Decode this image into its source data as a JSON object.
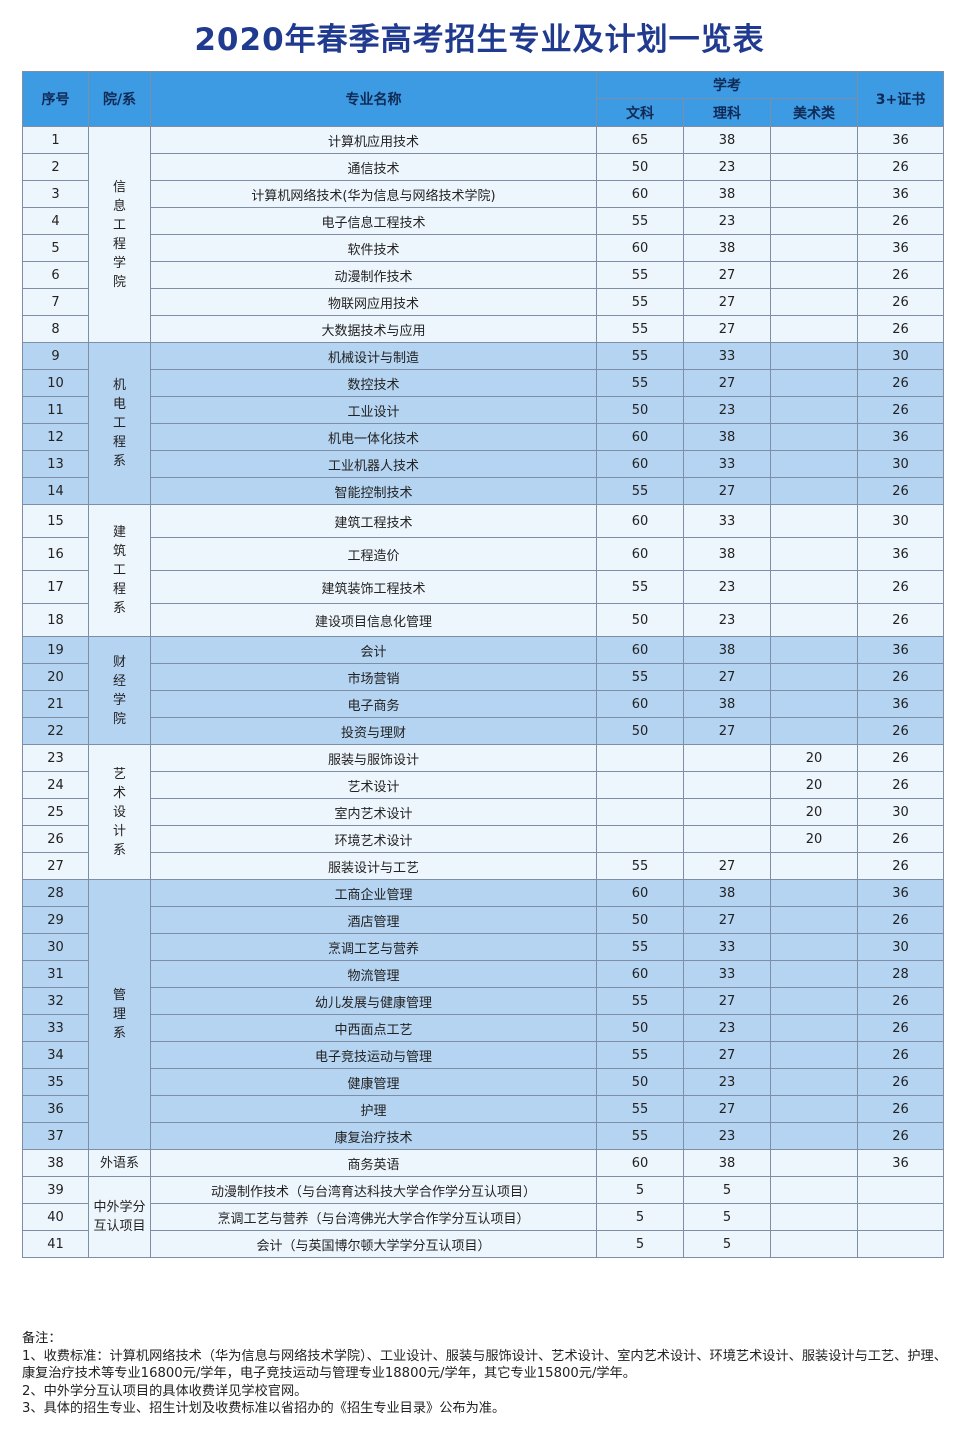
{
  "title": "2020年春季高考招生专业及计划一览表",
  "headers": {
    "index": "序号",
    "dept": "院/系",
    "major": "专业名称",
    "xuekao": "学考",
    "wenke": "文科",
    "like": "理科",
    "meishu": "美术类",
    "cert": "3+证书"
  },
  "departments": [
    {
      "name": "信息工程学院",
      "band": "w",
      "rows": [
        {
          "no": "1",
          "major": "计算机应用技术",
          "wen": "65",
          "li": "38",
          "mei": "",
          "cert": "36"
        },
        {
          "no": "2",
          "major": "通信技术",
          "wen": "50",
          "li": "23",
          "mei": "",
          "cert": "26"
        },
        {
          "no": "3",
          "major": "计算机网络技术(华为信息与网络技术学院)",
          "wen": "60",
          "li": "38",
          "mei": "",
          "cert": "36"
        },
        {
          "no": "4",
          "major": "电子信息工程技术",
          "wen": "55",
          "li": "23",
          "mei": "",
          "cert": "26"
        },
        {
          "no": "5",
          "major": "软件技术",
          "wen": "60",
          "li": "38",
          "mei": "",
          "cert": "36"
        },
        {
          "no": "6",
          "major": "动漫制作技术",
          "wen": "55",
          "li": "27",
          "mei": "",
          "cert": "26"
        },
        {
          "no": "7",
          "major": "物联网应用技术",
          "wen": "55",
          "li": "27",
          "mei": "",
          "cert": "26"
        },
        {
          "no": "8",
          "major": "大数据技术与应用",
          "wen": "55",
          "li": "27",
          "mei": "",
          "cert": "26"
        }
      ]
    },
    {
      "name": "机电工程系",
      "band": "b",
      "rows": [
        {
          "no": "9",
          "major": "机械设计与制造",
          "wen": "55",
          "li": "33",
          "mei": "",
          "cert": "30"
        },
        {
          "no": "10",
          "major": "数控技术",
          "wen": "55",
          "li": "27",
          "mei": "",
          "cert": "26"
        },
        {
          "no": "11",
          "major": "工业设计",
          "wen": "50",
          "li": "23",
          "mei": "",
          "cert": "26"
        },
        {
          "no": "12",
          "major": "机电一体化技术",
          "wen": "60",
          "li": "38",
          "mei": "",
          "cert": "36"
        },
        {
          "no": "13",
          "major": "工业机器人技术",
          "wen": "60",
          "li": "33",
          "mei": "",
          "cert": "30"
        },
        {
          "no": "14",
          "major": "智能控制技术",
          "wen": "55",
          "li": "27",
          "mei": "",
          "cert": "26"
        }
      ]
    },
    {
      "name": "建筑工程系",
      "band": "w",
      "rows": [
        {
          "no": "15",
          "major": "建筑工程技术",
          "wen": "60",
          "li": "33",
          "mei": "",
          "cert": "30"
        },
        {
          "no": "16",
          "major": "工程造价",
          "wen": "60",
          "li": "38",
          "mei": "",
          "cert": "36"
        },
        {
          "no": "17",
          "major": "建筑装饰工程技术",
          "wen": "55",
          "li": "23",
          "mei": "",
          "cert": "26"
        },
        {
          "no": "18",
          "major": "建设项目信息化管理",
          "wen": "50",
          "li": "23",
          "mei": "",
          "cert": "26"
        }
      ]
    },
    {
      "name": "财经学院",
      "band": "b",
      "rows": [
        {
          "no": "19",
          "major": "会计",
          "wen": "60",
          "li": "38",
          "mei": "",
          "cert": "36"
        },
        {
          "no": "20",
          "major": "市场营销",
          "wen": "55",
          "li": "27",
          "mei": "",
          "cert": "26"
        },
        {
          "no": "21",
          "major": "电子商务",
          "wen": "60",
          "li": "38",
          "mei": "",
          "cert": "36"
        },
        {
          "no": "22",
          "major": "投资与理财",
          "wen": "50",
          "li": "27",
          "mei": "",
          "cert": "26"
        }
      ]
    },
    {
      "name": "艺术设计系",
      "band": "w",
      "rows": [
        {
          "no": "23",
          "major": "服装与服饰设计",
          "wen": "",
          "li": "",
          "mei": "20",
          "cert": "26"
        },
        {
          "no": "24",
          "major": "艺术设计",
          "wen": "",
          "li": "",
          "mei": "20",
          "cert": "26"
        },
        {
          "no": "25",
          "major": "室内艺术设计",
          "wen": "",
          "li": "",
          "mei": "20",
          "cert": "30"
        },
        {
          "no": "26",
          "major": "环境艺术设计",
          "wen": "",
          "li": "",
          "mei": "20",
          "cert": "26"
        },
        {
          "no": "27",
          "major": "服装设计与工艺",
          "wen": "55",
          "li": "27",
          "mei": "",
          "cert": "26"
        }
      ]
    },
    {
      "name": "管理系",
      "band": "b",
      "rows": [
        {
          "no": "28",
          "major": "工商企业管理",
          "wen": "60",
          "li": "38",
          "mei": "",
          "cert": "36"
        },
        {
          "no": "29",
          "major": "酒店管理",
          "wen": "50",
          "li": "27",
          "mei": "",
          "cert": "26"
        },
        {
          "no": "30",
          "major": "烹调工艺与营养",
          "wen": "55",
          "li": "33",
          "mei": "",
          "cert": "30"
        },
        {
          "no": "31",
          "major": "物流管理",
          "wen": "60",
          "li": "33",
          "mei": "",
          "cert": "28"
        },
        {
          "no": "32",
          "major": "幼儿发展与健康管理",
          "wen": "55",
          "li": "27",
          "mei": "",
          "cert": "26"
        },
        {
          "no": "33",
          "major": "中西面点工艺",
          "wen": "50",
          "li": "23",
          "mei": "",
          "cert": "26"
        },
        {
          "no": "34",
          "major": "电子竞技运动与管理",
          "wen": "55",
          "li": "27",
          "mei": "",
          "cert": "26"
        },
        {
          "no": "35",
          "major": "健康管理",
          "wen": "50",
          "li": "23",
          "mei": "",
          "cert": "26"
        },
        {
          "no": "36",
          "major": "护理",
          "wen": "55",
          "li": "27",
          "mei": "",
          "cert": "26"
        },
        {
          "no": "37",
          "major": "康复治疗技术",
          "wen": "55",
          "li": "23",
          "mei": "",
          "cert": "26"
        }
      ]
    },
    {
      "name": "外语系",
      "band": "w",
      "horizontal": true,
      "rows": [
        {
          "no": "38",
          "major": "商务英语",
          "wen": "60",
          "li": "38",
          "mei": "",
          "cert": "36"
        }
      ]
    },
    {
      "name": "中外学分互认项目",
      "band": "w",
      "wrap": true,
      "rows": [
        {
          "no": "39",
          "major": "动漫制作技术（与台湾育达科技大学合作学分互认项目）",
          "wen": "5",
          "li": "5",
          "mei": "",
          "cert": ""
        },
        {
          "no": "40",
          "major": "烹调工艺与营养（与台湾佛光大学合作学分互认项目）",
          "wen": "5",
          "li": "5",
          "mei": "",
          "cert": ""
        },
        {
          "no": "41",
          "major": "会计（与英国博尔顿大学学分互认项目）",
          "wen": "5",
          "li": "5",
          "mei": "",
          "cert": ""
        }
      ]
    }
  ],
  "notes": {
    "title": "备注：",
    "items": [
      "1、收费标准：计算机网络技术（华为信息与网络技术学院）、工业设计、服装与服饰设计、艺术设计、室内艺术设计、环境艺术设计、服装设计与工艺、护理、康复治疗技术等专业16800元/学年，电子竞技运动与管理专业18800元/学年，其它专业15800元/学年。",
      "2、中外学分互认项目的具体收费详见学校官网。",
      "3、具体的招生专业、招生计划及收费标准以省招办的《招生专业目录》公布为准。"
    ]
  }
}
